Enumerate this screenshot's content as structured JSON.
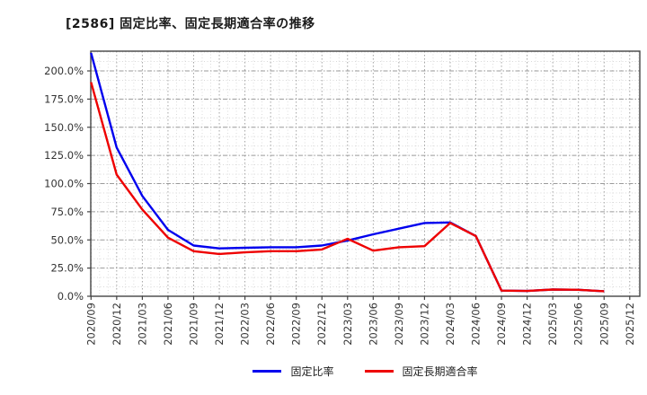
{
  "header": {
    "title": "[2586]  固定比率、固定長期適合率の推移"
  },
  "chart_data": {
    "type": "line",
    "title": "[2586]  固定比率、固定長期適合率の推移",
    "categories": [
      "2020/09",
      "2020/12",
      "2021/03",
      "2021/06",
      "2021/09",
      "2021/12",
      "2022/03",
      "2022/06",
      "2022/09",
      "2022/12",
      "2023/03",
      "2023/06",
      "2023/09",
      "2023/12",
      "2024/03",
      "2024/06",
      "2024/09",
      "2024/12",
      "2025/03",
      "2025/06",
      "2025/09",
      "2025/12"
    ],
    "series": [
      {
        "name": "固定比率",
        "color": "#0000ee",
        "values": [
          216,
          132,
          89,
          59,
          45,
          42.5,
          43,
          43.5,
          43.5,
          45,
          49.5,
          55,
          60,
          65,
          65.5,
          53.5,
          5,
          4.7,
          6,
          5.7,
          4.5,
          null
        ]
      },
      {
        "name": "固定長期適合率",
        "color": "#ee0000",
        "values": [
          190,
          108,
          77,
          52,
          40,
          37.5,
          39,
          40,
          40,
          41.5,
          51,
          40.5,
          43.5,
          44.5,
          65,
          53.5,
          5,
          4.7,
          6,
          5.7,
          4.5,
          null
        ]
      }
    ],
    "yticks": [
      0,
      25,
      50,
      75,
      100,
      125,
      150,
      175,
      200
    ],
    "ytick_format": "%.1f%%",
    "ylim": [
      0,
      217
    ],
    "grid": true,
    "legend_position": "bottom",
    "colors": {
      "axis": "#444444",
      "major_grid": "#9a9a9a",
      "minor_grid": "#d4d4d4",
      "tick_label": "#333333"
    }
  }
}
